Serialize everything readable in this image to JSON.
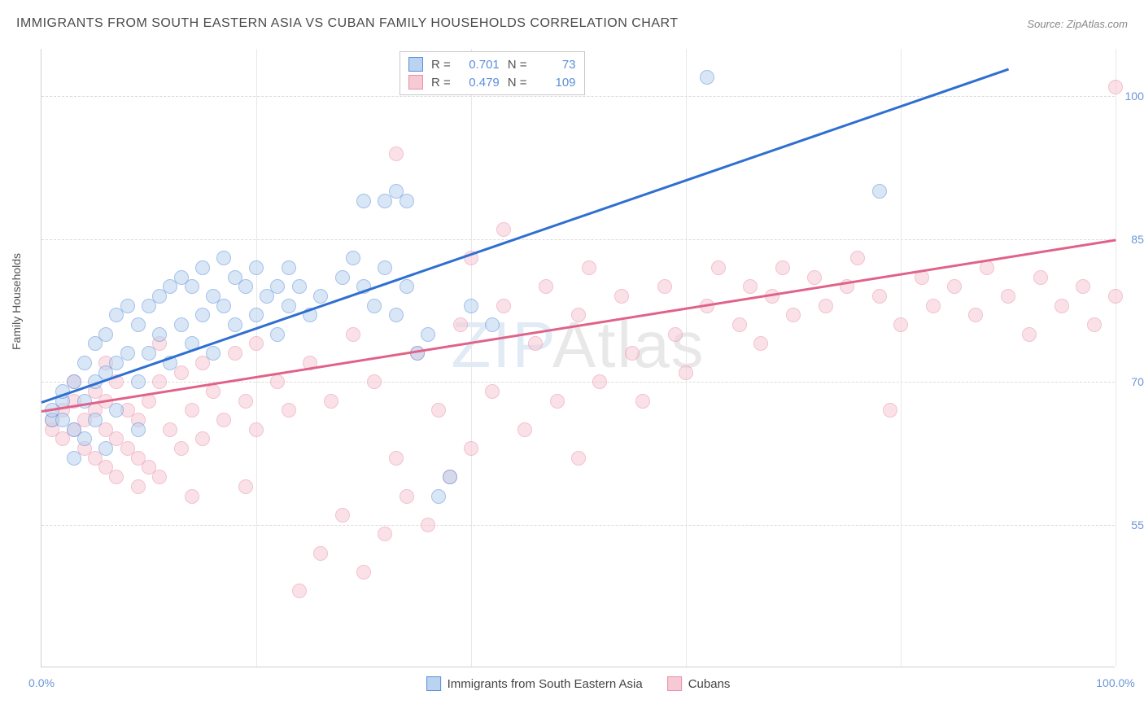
{
  "title": "IMMIGRANTS FROM SOUTH EASTERN ASIA VS CUBAN FAMILY HOUSEHOLDS CORRELATION CHART",
  "source_label": "Source:",
  "source_value": "ZipAtlas.com",
  "ylabel": "Family Households",
  "watermark_prefix": "ZIP",
  "watermark_suffix": "Atlas",
  "chart": {
    "type": "scatter",
    "xlim": [
      0,
      100
    ],
    "ylim": [
      40,
      105
    ],
    "x_ticks": [
      0,
      20,
      40,
      60,
      80,
      100
    ],
    "x_tick_labels_shown": {
      "0": "0.0%",
      "100": "100.0%"
    },
    "y_ticks": [
      55,
      70,
      85,
      100
    ],
    "y_tick_labels": {
      "55": "55.0%",
      "70": "70.0%",
      "85": "85.0%",
      "100": "100.0%"
    },
    "grid_color": "#dcdcdc",
    "axis_color": "#d0d0d0",
    "tick_label_color": "#6b95d8",
    "background_color": "#ffffff",
    "marker_size": 18,
    "marker_opacity": 0.55
  },
  "series": [
    {
      "key": "sea",
      "name": "Immigrants from South Eastern Asia",
      "fill": "#b9d3f0",
      "stroke": "#5b8fd9",
      "line_color": "#2f6fd0",
      "R": "0.701",
      "N": "73",
      "trend": {
        "x1": 0,
        "y1": 68,
        "x2": 90,
        "y2": 103
      },
      "points": [
        [
          1,
          66
        ],
        [
          1,
          67
        ],
        [
          2,
          66
        ],
        [
          2,
          68
        ],
        [
          2,
          69
        ],
        [
          3,
          65
        ],
        [
          3,
          70
        ],
        [
          4,
          68
        ],
        [
          4,
          72
        ],
        [
          5,
          66
        ],
        [
          5,
          70
        ],
        [
          5,
          74
        ],
        [
          6,
          71
        ],
        [
          6,
          75
        ],
        [
          7,
          67
        ],
        [
          7,
          72
        ],
        [
          7,
          77
        ],
        [
          8,
          73
        ],
        [
          8,
          78
        ],
        [
          9,
          70
        ],
        [
          9,
          76
        ],
        [
          10,
          73
        ],
        [
          10,
          78
        ],
        [
          11,
          75
        ],
        [
          11,
          79
        ],
        [
          12,
          72
        ],
        [
          12,
          80
        ],
        [
          13,
          76
        ],
        [
          13,
          81
        ],
        [
          14,
          74
        ],
        [
          14,
          80
        ],
        [
          15,
          77
        ],
        [
          15,
          82
        ],
        [
          16,
          73
        ],
        [
          16,
          79
        ],
        [
          17,
          78
        ],
        [
          17,
          83
        ],
        [
          18,
          76
        ],
        [
          18,
          81
        ],
        [
          19,
          80
        ],
        [
          20,
          77
        ],
        [
          20,
          82
        ],
        [
          21,
          79
        ],
        [
          22,
          75
        ],
        [
          22,
          80
        ],
        [
          23,
          78
        ],
        [
          23,
          82
        ],
        [
          24,
          80
        ],
        [
          25,
          77
        ],
        [
          26,
          79
        ],
        [
          28,
          81
        ],
        [
          29,
          83
        ],
        [
          30,
          80
        ],
        [
          30,
          89
        ],
        [
          31,
          78
        ],
        [
          32,
          82
        ],
        [
          32,
          89
        ],
        [
          33,
          77
        ],
        [
          33,
          90
        ],
        [
          34,
          80
        ],
        [
          34,
          89
        ],
        [
          35,
          73
        ],
        [
          36,
          75
        ],
        [
          37,
          58
        ],
        [
          38,
          60
        ],
        [
          40,
          78
        ],
        [
          42,
          76
        ],
        [
          62,
          102
        ],
        [
          78,
          90
        ],
        [
          4,
          64
        ],
        [
          6,
          63
        ],
        [
          3,
          62
        ],
        [
          9,
          65
        ]
      ]
    },
    {
      "key": "cuban",
      "name": "Cubans",
      "fill": "#f7c9d5",
      "stroke": "#e890aa",
      "line_color": "#e06289",
      "R": "0.479",
      "N": "109",
      "trend": {
        "x1": 0,
        "y1": 67,
        "x2": 100,
        "y2": 85
      },
      "points": [
        [
          1,
          65
        ],
        [
          1,
          66
        ],
        [
          2,
          64
        ],
        [
          2,
          67
        ],
        [
          3,
          65
        ],
        [
          3,
          68
        ],
        [
          3,
          70
        ],
        [
          4,
          63
        ],
        [
          4,
          66
        ],
        [
          5,
          62
        ],
        [
          5,
          67
        ],
        [
          5,
          69
        ],
        [
          6,
          61
        ],
        [
          6,
          65
        ],
        [
          6,
          68
        ],
        [
          7,
          60
        ],
        [
          7,
          64
        ],
        [
          7,
          70
        ],
        [
          8,
          63
        ],
        [
          8,
          67
        ],
        [
          9,
          62
        ],
        [
          9,
          66
        ],
        [
          10,
          61
        ],
        [
          10,
          68
        ],
        [
          11,
          60
        ],
        [
          11,
          70
        ],
        [
          12,
          65
        ],
        [
          13,
          63
        ],
        [
          13,
          71
        ],
        [
          14,
          67
        ],
        [
          15,
          64
        ],
        [
          15,
          72
        ],
        [
          16,
          69
        ],
        [
          17,
          66
        ],
        [
          18,
          73
        ],
        [
          19,
          68
        ],
        [
          20,
          65
        ],
        [
          20,
          74
        ],
        [
          22,
          70
        ],
        [
          23,
          67
        ],
        [
          24,
          48
        ],
        [
          25,
          72
        ],
        [
          26,
          52
        ],
        [
          27,
          68
        ],
        [
          28,
          56
        ],
        [
          29,
          75
        ],
        [
          30,
          50
        ],
        [
          31,
          70
        ],
        [
          32,
          54
        ],
        [
          33,
          62
        ],
        [
          33,
          94
        ],
        [
          34,
          58
        ],
        [
          35,
          73
        ],
        [
          36,
          55
        ],
        [
          37,
          67
        ],
        [
          38,
          60
        ],
        [
          39,
          76
        ],
        [
          40,
          63
        ],
        [
          40,
          83
        ],
        [
          42,
          69
        ],
        [
          43,
          78
        ],
        [
          43,
          86
        ],
        [
          45,
          65
        ],
        [
          46,
          74
        ],
        [
          47,
          80
        ],
        [
          48,
          68
        ],
        [
          50,
          62
        ],
        [
          50,
          77
        ],
        [
          51,
          82
        ],
        [
          52,
          70
        ],
        [
          54,
          79
        ],
        [
          55,
          73
        ],
        [
          56,
          68
        ],
        [
          58,
          80
        ],
        [
          59,
          75
        ],
        [
          60,
          71
        ],
        [
          62,
          78
        ],
        [
          63,
          82
        ],
        [
          65,
          76
        ],
        [
          66,
          80
        ],
        [
          67,
          74
        ],
        [
          68,
          79
        ],
        [
          69,
          82
        ],
        [
          70,
          77
        ],
        [
          72,
          81
        ],
        [
          73,
          78
        ],
        [
          75,
          80
        ],
        [
          76,
          83
        ],
        [
          78,
          79
        ],
        [
          79,
          67
        ],
        [
          80,
          76
        ],
        [
          82,
          81
        ],
        [
          83,
          78
        ],
        [
          85,
          80
        ],
        [
          87,
          77
        ],
        [
          88,
          82
        ],
        [
          90,
          79
        ],
        [
          92,
          75
        ],
        [
          93,
          81
        ],
        [
          95,
          78
        ],
        [
          97,
          80
        ],
        [
          98,
          76
        ],
        [
          100,
          79
        ],
        [
          100,
          101
        ],
        [
          9,
          59
        ],
        [
          14,
          58
        ],
        [
          19,
          59
        ],
        [
          6,
          72
        ],
        [
          11,
          74
        ]
      ]
    }
  ],
  "legend_top": {
    "R_label": "R =",
    "N_label": "N ="
  }
}
